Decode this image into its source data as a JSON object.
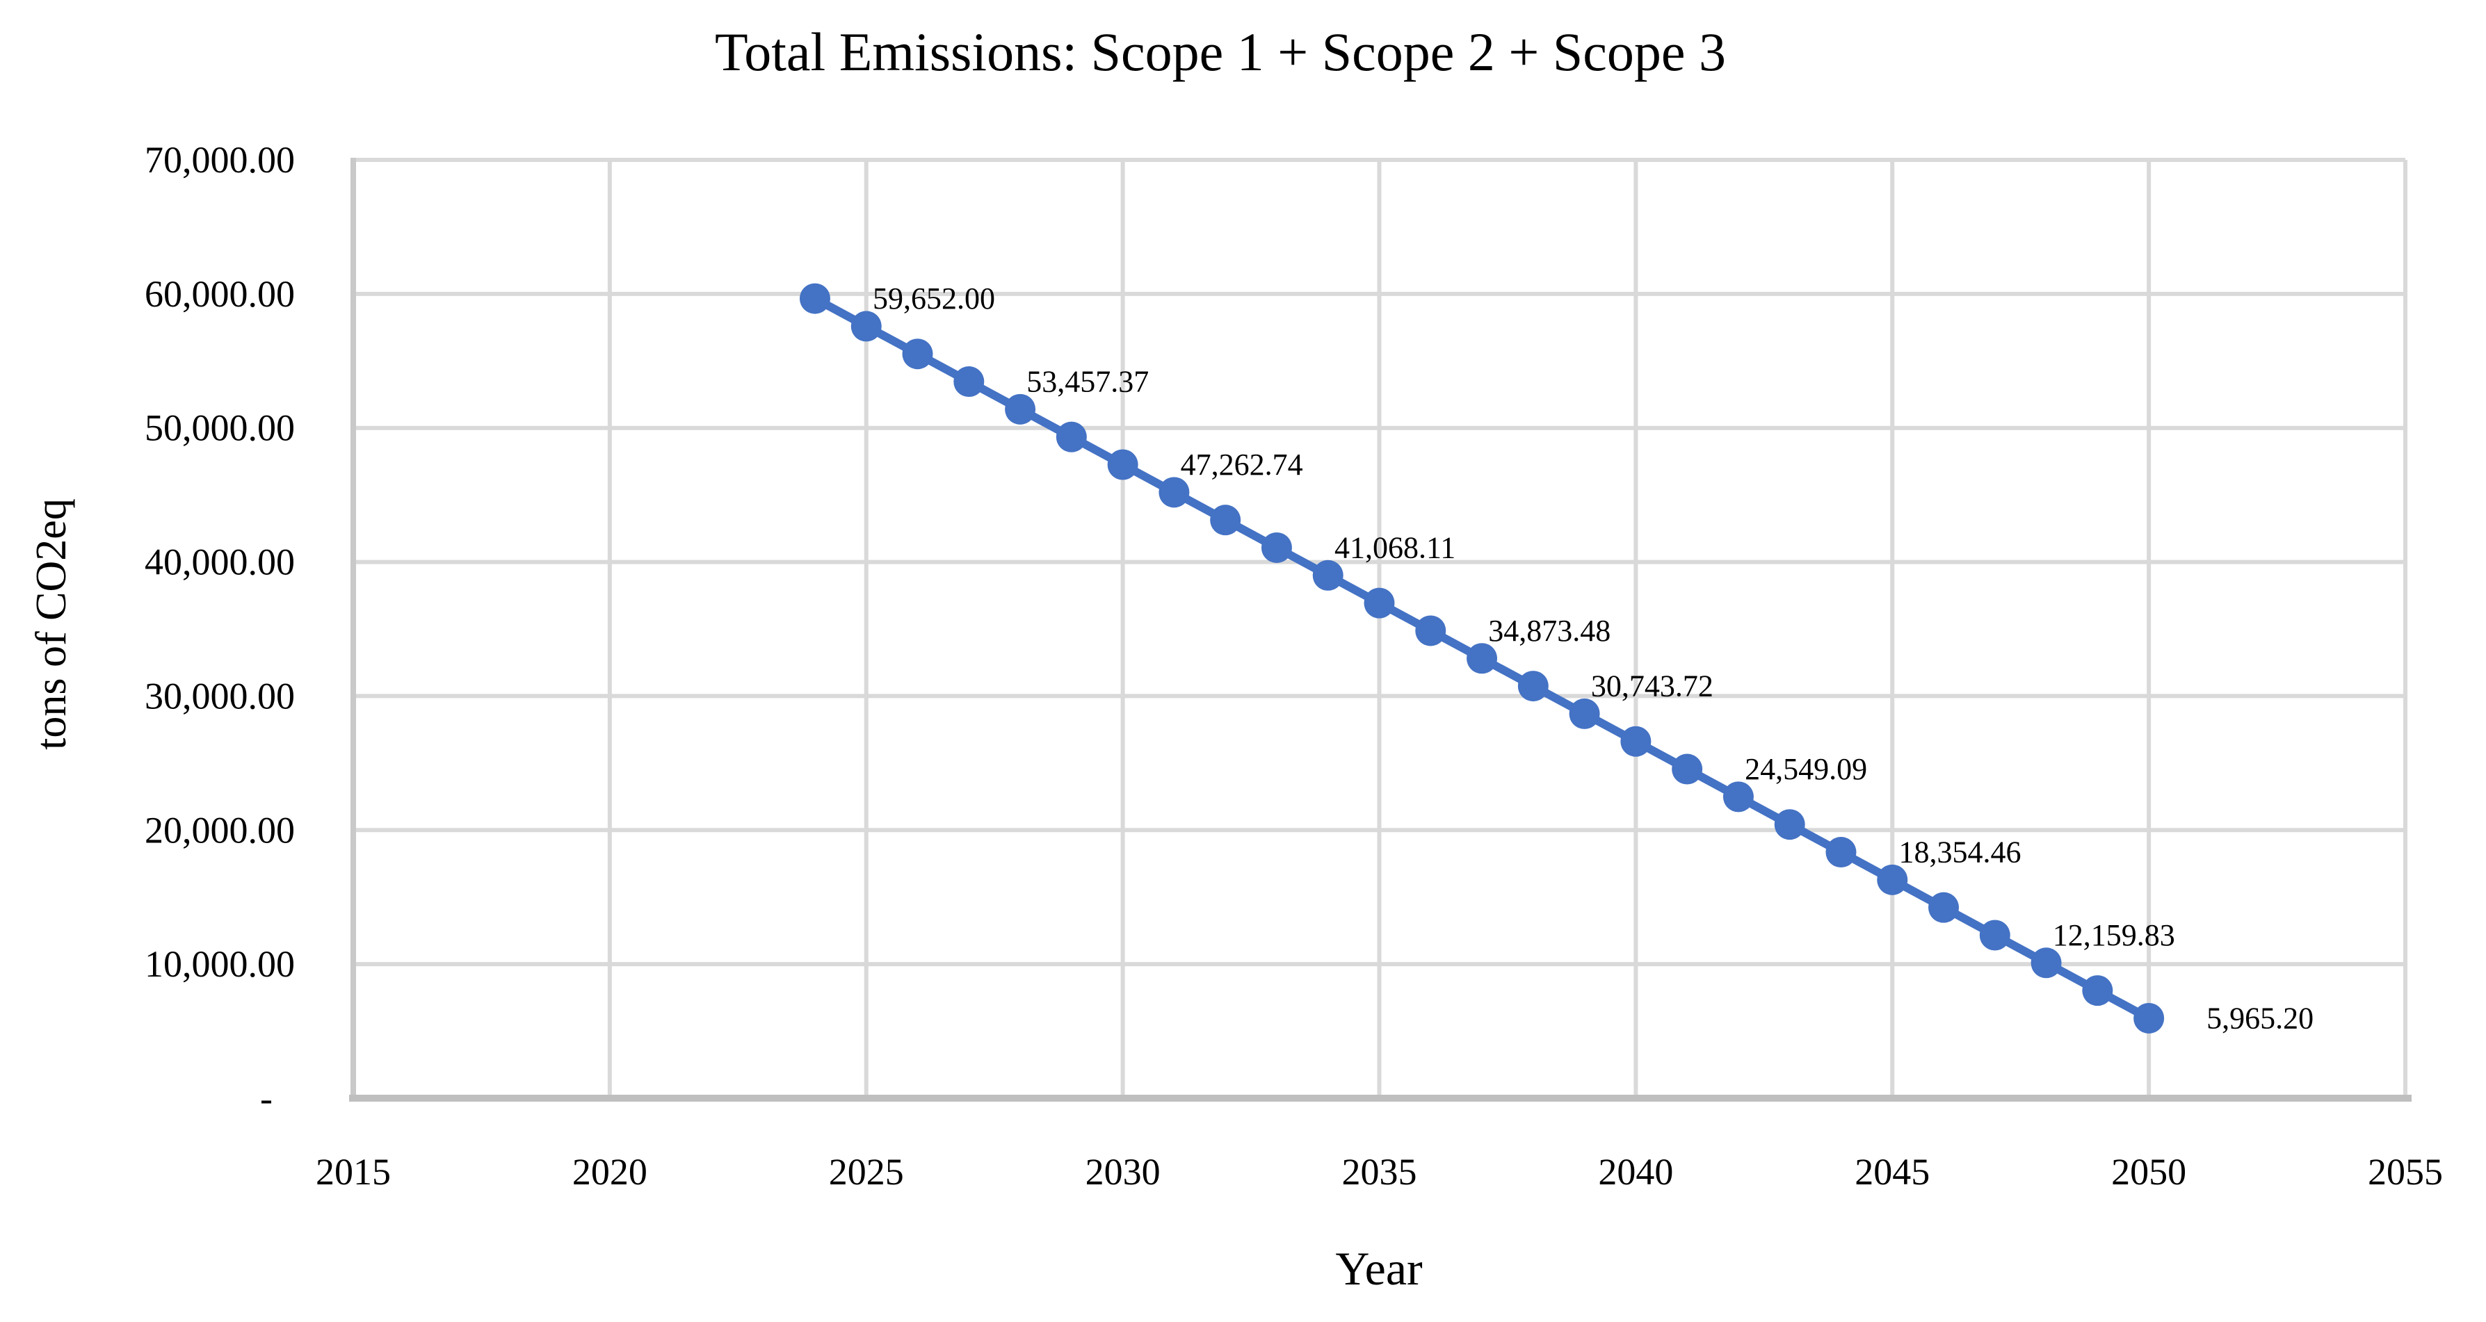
{
  "chart_data": {
    "type": "line",
    "title": "Total Emissions: Scope 1 + Scope 2 + Scope 3",
    "xlabel": "Year",
    "ylabel": "tons of CO2eq",
    "xlim": [
      2015,
      2055
    ],
    "ylim": [
      0,
      70000
    ],
    "grid": true,
    "legend": false,
    "x_tick_labels": [
      "2015",
      "2020",
      "2025",
      "2030",
      "2035",
      "2040",
      "2045",
      "2050",
      "2055"
    ],
    "x_tick_values": [
      2015,
      2020,
      2025,
      2030,
      2035,
      2040,
      2045,
      2050,
      2055
    ],
    "y_tick_labels": [
      "-",
      "10,000.00",
      "20,000.00",
      "30,000.00",
      "40,000.00",
      "50,000.00",
      "60,000.00",
      "70,000.00"
    ],
    "y_tick_values": [
      0,
      10000,
      20000,
      30000,
      40000,
      50000,
      60000,
      70000
    ],
    "series": [
      {
        "name": "Total Emissions",
        "color": "#4472C4",
        "x": [
          2024,
          2025,
          2026,
          2027,
          2028,
          2029,
          2030,
          2031,
          2032,
          2033,
          2034,
          2035,
          2036,
          2037,
          2038,
          2039,
          2040,
          2041,
          2042,
          2043,
          2044,
          2045,
          2046,
          2047,
          2048,
          2049,
          2050
        ],
        "values": [
          59652.0,
          57587.12,
          55522.25,
          53457.37,
          51392.49,
          49327.62,
          47262.74,
          45197.86,
          43132.98,
          41068.11,
          39003.23,
          36938.35,
          34873.48,
          32808.6,
          30743.72,
          28678.85,
          26613.97,
          24549.09,
          22484.22,
          20419.34,
          18354.46,
          16289.58,
          14224.71,
          12159.83,
          10094.95,
          8030.08,
          5965.2
        ],
        "point_labels": {
          "2024": "59,652.00",
          "2027": "53,457.37",
          "2030": "47,262.74",
          "2033": "41,068.11",
          "2036": "34,873.48",
          "2038": "30,743.72",
          "2041": "24,549.09",
          "2044": "18,354.46",
          "2047": "12,159.83",
          "2050": "5,965.20"
        }
      }
    ],
    "colors": {
      "series_line": "#4472C4",
      "marker_fill": "#4472C4",
      "gridline": "#D9D9D9",
      "axis_line": "#BFBFBF",
      "text": "#000000",
      "background": "#FFFFFF"
    }
  }
}
